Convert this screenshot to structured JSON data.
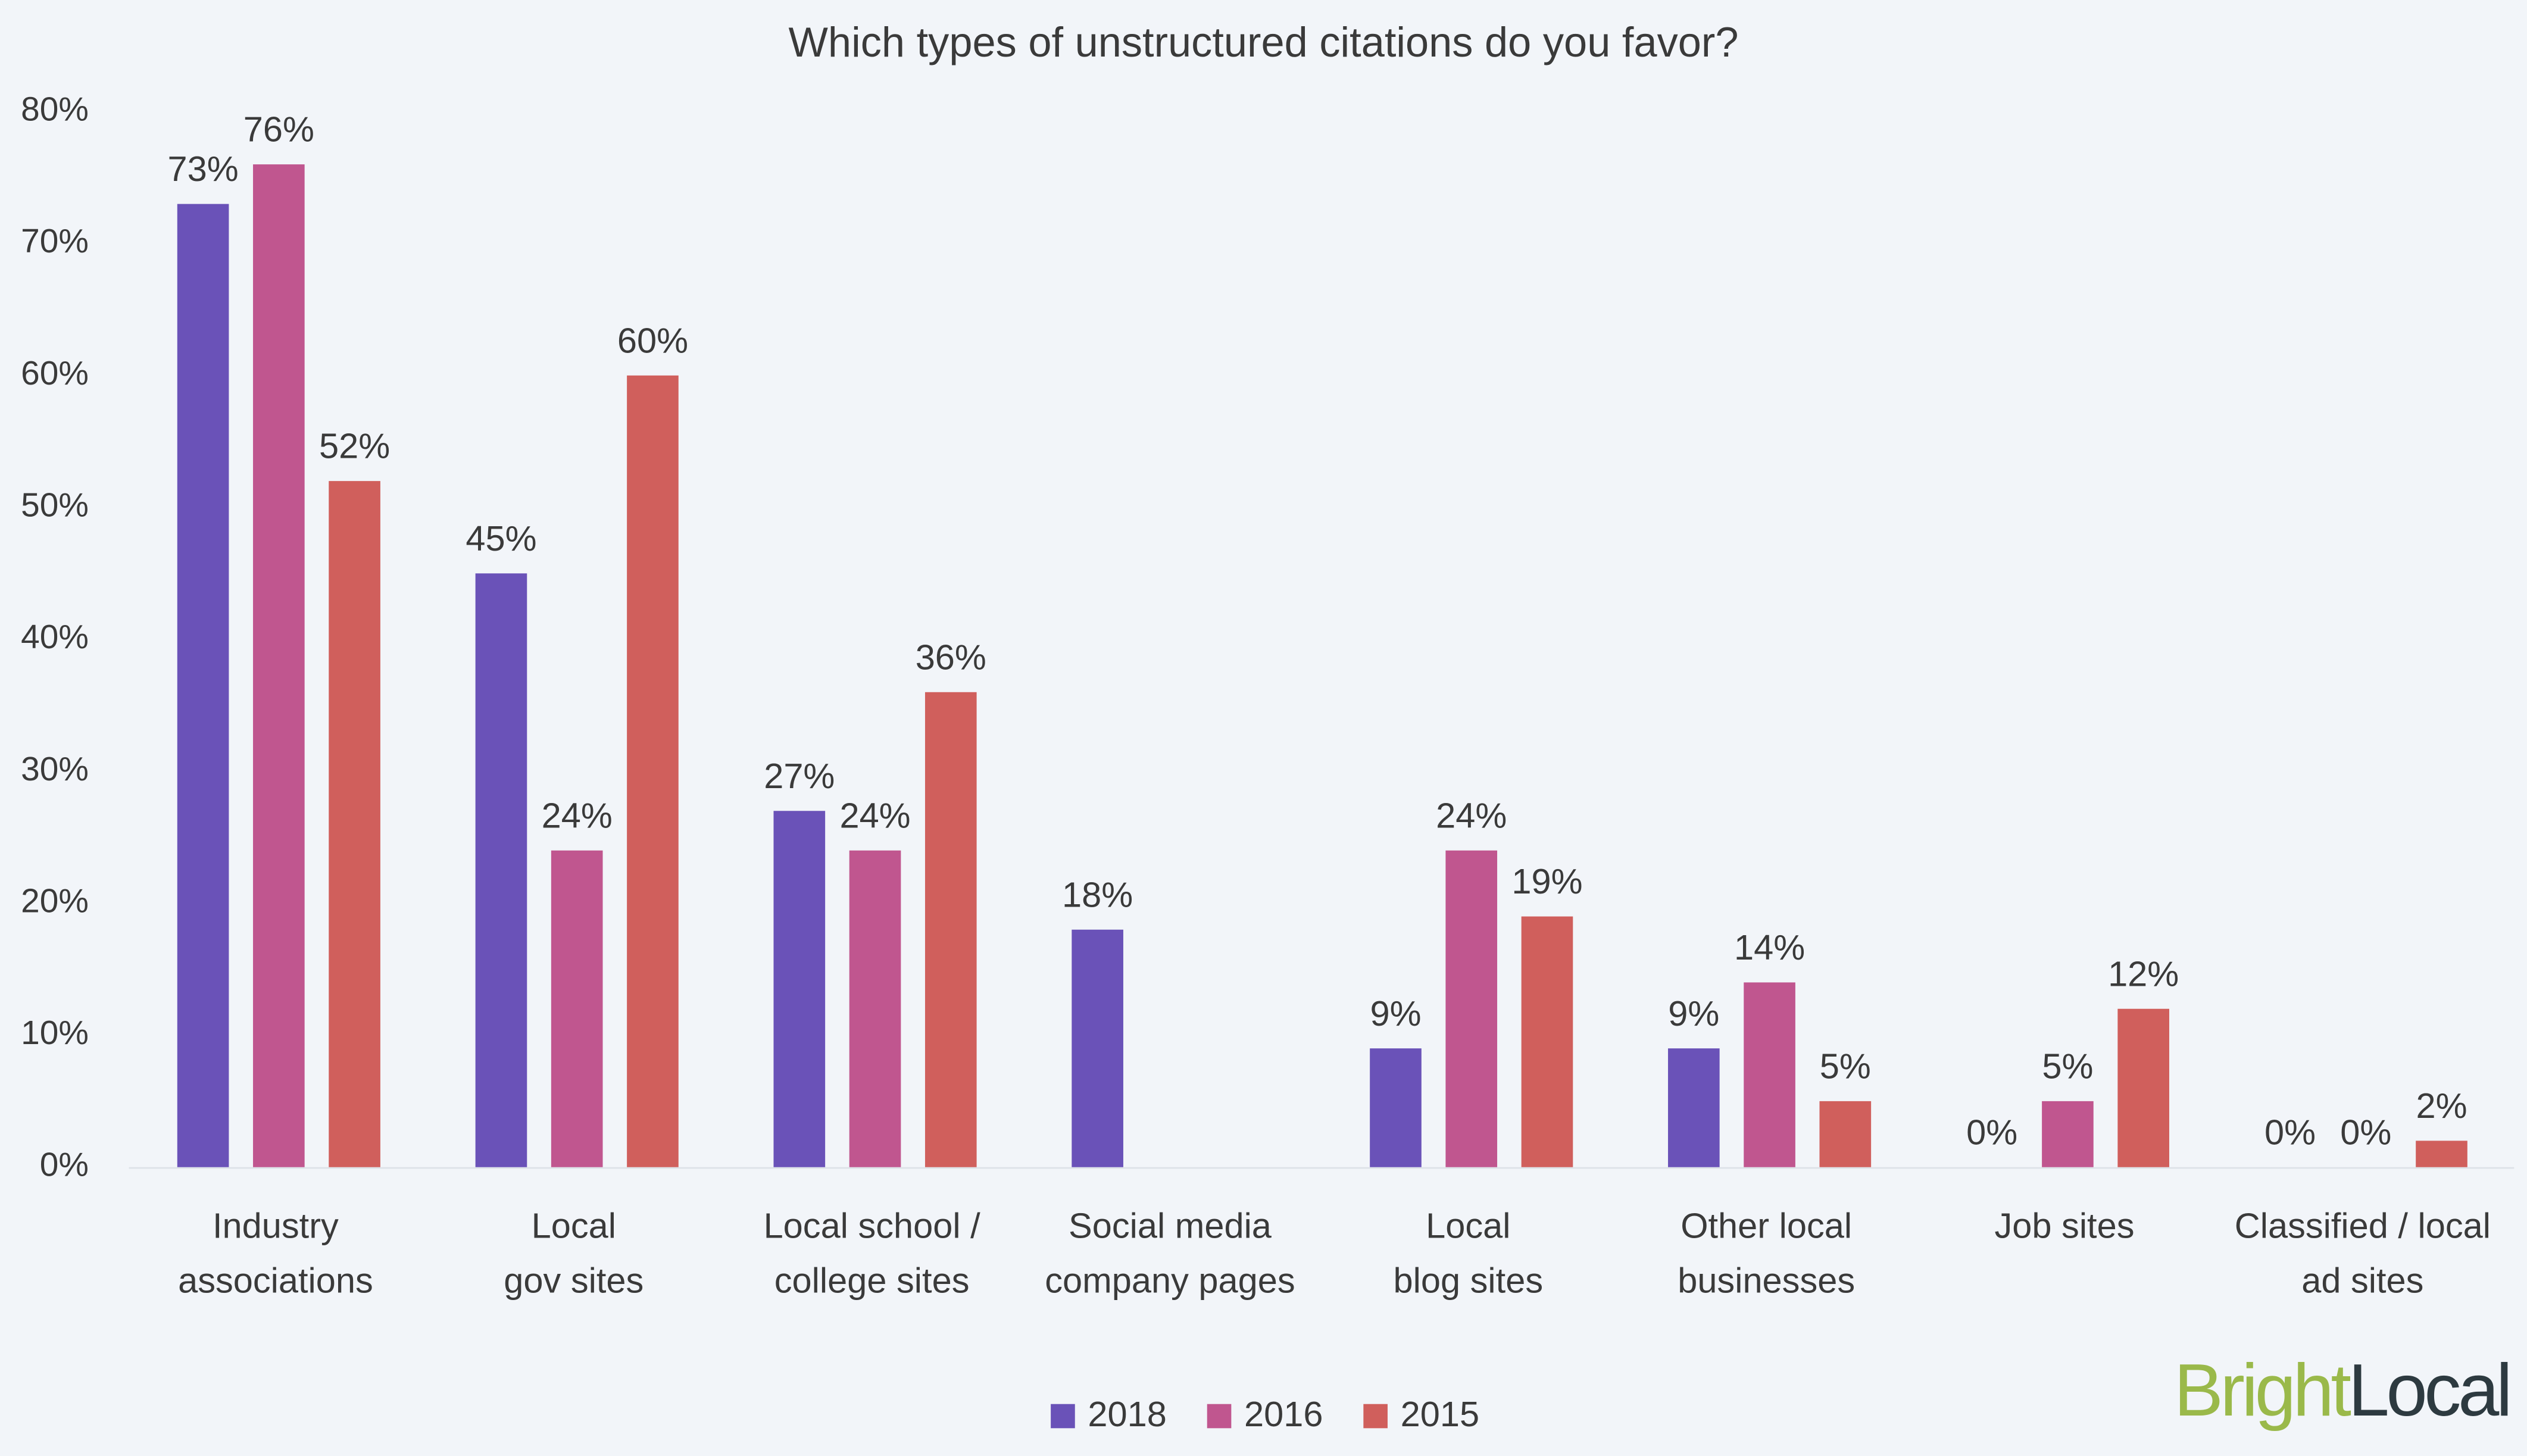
{
  "chart_data": {
    "type": "bar",
    "title": "Which types of unstructured citations do you favor?",
    "categories": [
      [
        "Industry",
        "associations"
      ],
      [
        "Local",
        "gov sites"
      ],
      [
        "Local school /",
        "college sites"
      ],
      [
        "Social media",
        "company pages"
      ],
      [
        "Local",
        "blog sites"
      ],
      [
        "Other local",
        "businesses"
      ],
      [
        "Job sites"
      ],
      [
        "Classified / local",
        "ad sites"
      ]
    ],
    "series": [
      {
        "name": "2018",
        "color": "#6a52b8",
        "values": [
          73,
          45,
          27,
          18,
          9,
          9,
          0,
          0
        ],
        "value_labels": [
          "73%",
          "45%",
          "27%",
          "18%",
          "9%",
          "9%",
          "0%",
          "0%"
        ]
      },
      {
        "name": "2016",
        "color": "#c0568f",
        "values": [
          76,
          24,
          24,
          null,
          24,
          14,
          5,
          0
        ],
        "value_labels": [
          "76%",
          "24%",
          "24%",
          null,
          "24%",
          "14%",
          "5%",
          "0%"
        ]
      },
      {
        "name": "2015",
        "color": "#d05f5c",
        "values": [
          52,
          60,
          36,
          null,
          19,
          5,
          12,
          2
        ],
        "value_labels": [
          "52%",
          "60%",
          "36%",
          null,
          "19%",
          "5%",
          "12%",
          "2%"
        ]
      }
    ],
    "ylim": [
      0,
      80
    ],
    "yticks": [
      {
        "value": 0,
        "label": "0%"
      },
      {
        "value": 10,
        "label": "10%"
      },
      {
        "value": 20,
        "label": "20%"
      },
      {
        "value": 30,
        "label": "30%"
      },
      {
        "value": 40,
        "label": "40%"
      },
      {
        "value": 50,
        "label": "50%"
      },
      {
        "value": 60,
        "label": "60%"
      },
      {
        "value": 70,
        "label": "70%"
      },
      {
        "value": 80,
        "label": "80%"
      }
    ],
    "grid": false,
    "legend": "bottom",
    "logo": [
      "Bright",
      "Local"
    ]
  }
}
